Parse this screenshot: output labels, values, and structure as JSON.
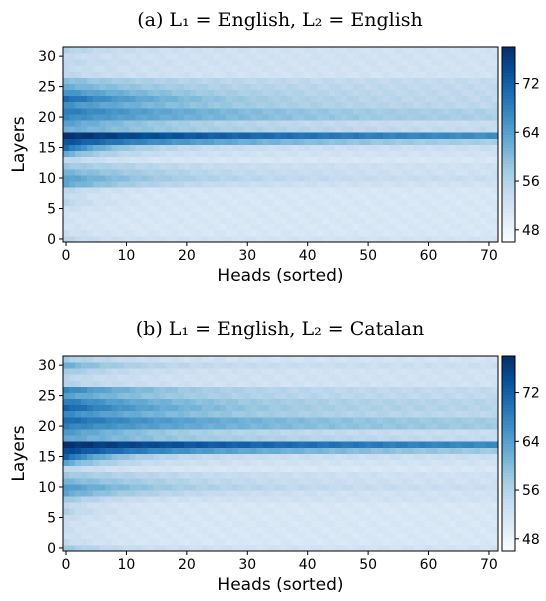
{
  "chart_data": [
    {
      "type": "heatmap",
      "title": "(a) L₁ = English, L₂ = English",
      "xlabel": "Heads (sorted)",
      "ylabel": "Layers",
      "xlim": [
        0,
        71
      ],
      "ylim": [
        0,
        31
      ],
      "xticks": [
        "0",
        "10",
        "20",
        "30",
        "40",
        "50",
        "60",
        "70"
      ],
      "yticks": [
        "0",
        "5",
        "10",
        "15",
        "20",
        "25",
        "30"
      ],
      "colorbar": {
        "ticks": [
          "48",
          "56",
          "64",
          "72"
        ],
        "range": [
          46,
          78
        ]
      },
      "n_heads": 72,
      "n_layers": 32,
      "colormap": [
        "#f7fbff",
        "#deebf7",
        "#c6dbef",
        "#9ecae1",
        "#6baed6",
        "#4292c6",
        "#2171b5",
        "#08519c",
        "#08306b"
      ],
      "layer_profiles": [
        {
          "layer": 0,
          "peak": 55,
          "floor": 52,
          "decay": 6
        },
        {
          "layer": 1,
          "peak": 53,
          "floor": 51,
          "decay": 6
        },
        {
          "layer": 2,
          "peak": 52,
          "floor": 51,
          "decay": 6
        },
        {
          "layer": 3,
          "peak": 52,
          "floor": 51,
          "decay": 6
        },
        {
          "layer": 4,
          "peak": 52,
          "floor": 51,
          "decay": 6
        },
        {
          "layer": 5,
          "peak": 53,
          "floor": 51,
          "decay": 6
        },
        {
          "layer": 6,
          "peak": 55,
          "floor": 51,
          "decay": 6
        },
        {
          "layer": 7,
          "peak": 54,
          "floor": 51,
          "decay": 6
        },
        {
          "layer": 8,
          "peak": 55,
          "floor": 51,
          "decay": 8
        },
        {
          "layer": 9,
          "peak": 63,
          "floor": 52,
          "decay": 14
        },
        {
          "layer": 10,
          "peak": 64,
          "floor": 53,
          "decay": 18
        },
        {
          "layer": 11,
          "peak": 61,
          "floor": 52,
          "decay": 22
        },
        {
          "layer": 12,
          "peak": 58,
          "floor": 52,
          "decay": 22
        },
        {
          "layer": 13,
          "peak": 55,
          "floor": 51,
          "decay": 8
        },
        {
          "layer": 14,
          "peak": 62,
          "floor": 52,
          "decay": 8
        },
        {
          "layer": 15,
          "peak": 71,
          "floor": 53,
          "decay": 8
        },
        {
          "layer": 16,
          "peak": 74,
          "floor": 55,
          "decay": 30
        },
        {
          "layer": 17,
          "peak": 78,
          "floor": 61,
          "decay": 60
        },
        {
          "layer": 18,
          "peak": 62,
          "floor": 53,
          "decay": 30
        },
        {
          "layer": 19,
          "peak": 64,
          "floor": 53,
          "decay": 20
        },
        {
          "layer": 20,
          "peak": 67,
          "floor": 55,
          "decay": 35
        },
        {
          "layer": 21,
          "peak": 69,
          "floor": 55,
          "decay": 30
        },
        {
          "layer": 22,
          "peak": 66,
          "floor": 54,
          "decay": 25
        },
        {
          "layer": 23,
          "peak": 71,
          "floor": 54,
          "decay": 20
        },
        {
          "layer": 24,
          "peak": 66,
          "floor": 54,
          "decay": 20
        },
        {
          "layer": 25,
          "peak": 62,
          "floor": 54,
          "decay": 20
        },
        {
          "layer": 26,
          "peak": 60,
          "floor": 54,
          "decay": 16
        },
        {
          "layer": 27,
          "peak": 55,
          "floor": 52,
          "decay": 10
        },
        {
          "layer": 28,
          "peak": 54,
          "floor": 52,
          "decay": 10
        },
        {
          "layer": 29,
          "peak": 55,
          "floor": 52,
          "decay": 10
        },
        {
          "layer": 30,
          "peak": 54,
          "floor": 52,
          "decay": 10
        },
        {
          "layer": 31,
          "peak": 56,
          "floor": 52,
          "decay": 10
        }
      ]
    },
    {
      "type": "heatmap",
      "title": "(b) L₁ = English, L₂ = Catalan",
      "xlabel": "Heads (sorted)",
      "ylabel": "Layers",
      "xlim": [
        0,
        71
      ],
      "ylim": [
        0,
        31
      ],
      "xticks": [
        "0",
        "10",
        "20",
        "30",
        "40",
        "50",
        "60",
        "70"
      ],
      "yticks": [
        "0",
        "5",
        "10",
        "15",
        "20",
        "25",
        "30"
      ],
      "colorbar": {
        "ticks": [
          "48",
          "56",
          "64",
          "72"
        ],
        "range": [
          46,
          78
        ]
      },
      "n_heads": 72,
      "n_layers": 32,
      "colormap": [
        "#f7fbff",
        "#deebf7",
        "#c6dbef",
        "#9ecae1",
        "#6baed6",
        "#4292c6",
        "#2171b5",
        "#08519c",
        "#08306b"
      ],
      "layer_profiles": [
        {
          "layer": 0,
          "peak": 58,
          "floor": 52,
          "decay": 8
        },
        {
          "layer": 1,
          "peak": 54,
          "floor": 51,
          "decay": 6
        },
        {
          "layer": 2,
          "peak": 53,
          "floor": 51,
          "decay": 6
        },
        {
          "layer": 3,
          "peak": 53,
          "floor": 51,
          "decay": 6
        },
        {
          "layer": 4,
          "peak": 53,
          "floor": 51,
          "decay": 6
        },
        {
          "layer": 5,
          "peak": 54,
          "floor": 51,
          "decay": 6
        },
        {
          "layer": 6,
          "peak": 56,
          "floor": 51,
          "decay": 6
        },
        {
          "layer": 7,
          "peak": 55,
          "floor": 51,
          "decay": 6
        },
        {
          "layer": 8,
          "peak": 58,
          "floor": 52,
          "decay": 8
        },
        {
          "layer": 9,
          "peak": 63,
          "floor": 52,
          "decay": 14
        },
        {
          "layer": 10,
          "peak": 65,
          "floor": 53,
          "decay": 18
        },
        {
          "layer": 11,
          "peak": 61,
          "floor": 52,
          "decay": 22
        },
        {
          "layer": 12,
          "peak": 58,
          "floor": 52,
          "decay": 22
        },
        {
          "layer": 13,
          "peak": 55,
          "floor": 51,
          "decay": 8
        },
        {
          "layer": 14,
          "peak": 63,
          "floor": 52,
          "decay": 8
        },
        {
          "layer": 15,
          "peak": 72,
          "floor": 53,
          "decay": 8
        },
        {
          "layer": 16,
          "peak": 75,
          "floor": 56,
          "decay": 30
        },
        {
          "layer": 17,
          "peak": 78,
          "floor": 62,
          "decay": 60
        },
        {
          "layer": 18,
          "peak": 63,
          "floor": 53,
          "decay": 30
        },
        {
          "layer": 19,
          "peak": 65,
          "floor": 53,
          "decay": 20
        },
        {
          "layer": 20,
          "peak": 68,
          "floor": 56,
          "decay": 35
        },
        {
          "layer": 21,
          "peak": 71,
          "floor": 56,
          "decay": 30
        },
        {
          "layer": 22,
          "peak": 67,
          "floor": 54,
          "decay": 25
        },
        {
          "layer": 23,
          "peak": 72,
          "floor": 55,
          "decay": 20
        },
        {
          "layer": 24,
          "peak": 69,
          "floor": 55,
          "decay": 20
        },
        {
          "layer": 25,
          "peak": 64,
          "floor": 54,
          "decay": 20
        },
        {
          "layer": 26,
          "peak": 68,
          "floor": 54,
          "decay": 16
        },
        {
          "layer": 27,
          "peak": 56,
          "floor": 52,
          "decay": 10
        },
        {
          "layer": 28,
          "peak": 55,
          "floor": 52,
          "decay": 10
        },
        {
          "layer": 29,
          "peak": 58,
          "floor": 52,
          "decay": 10
        },
        {
          "layer": 30,
          "peak": 62,
          "floor": 53,
          "decay": 12
        },
        {
          "layer": 31,
          "peak": 57,
          "floor": 52,
          "decay": 10
        }
      ]
    }
  ]
}
